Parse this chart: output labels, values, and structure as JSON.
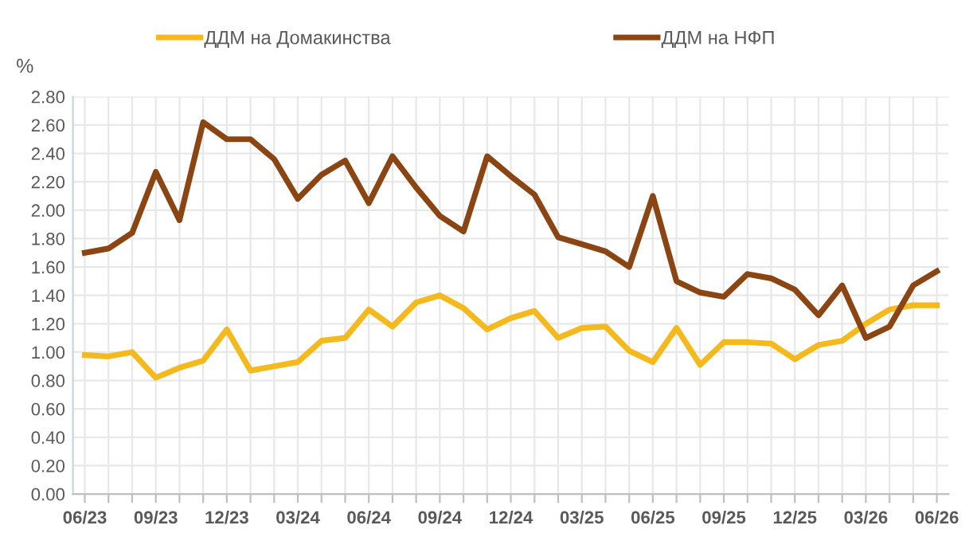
{
  "chart_data": {
    "type": "line",
    "ylabel": "%",
    "categories": [
      "06/23",
      null,
      null,
      "09/23",
      null,
      null,
      "12/23",
      null,
      null,
      "03/24",
      null,
      null,
      "06/24",
      null,
      null,
      "09/24",
      null,
      null,
      "12/24",
      null,
      null,
      "03/25",
      null,
      null,
      "06/25",
      null,
      null,
      "09/25",
      null,
      null,
      "12/25",
      null,
      null,
      "03/26",
      null,
      null,
      "06/26"
    ],
    "series": [
      {
        "name": "ДДМ на Домакинства",
        "color": "#f4b91c",
        "values": [
          0.98,
          0.97,
          1.0,
          0.82,
          0.89,
          0.94,
          1.16,
          0.87,
          0.9,
          0.93,
          1.08,
          1.1,
          1.3,
          1.18,
          1.35,
          1.4,
          1.31,
          1.16,
          1.24,
          1.29,
          1.1,
          1.17,
          1.18,
          1.01,
          0.93,
          1.17,
          0.91,
          1.07,
          1.07,
          1.06,
          0.95,
          1.05,
          1.08,
          1.2,
          1.3,
          1.33,
          1.33
        ]
      },
      {
        "name": "ДДМ на НФП",
        "color": "#8b4513",
        "values": [
          1.7,
          1.73,
          1.84,
          2.27,
          1.93,
          2.62,
          2.5,
          2.5,
          2.36,
          2.08,
          2.25,
          2.35,
          2.05,
          2.38,
          2.16,
          1.96,
          1.85,
          2.38,
          2.24,
          2.11,
          1.81,
          1.76,
          1.71,
          1.6,
          2.1,
          1.5,
          1.42,
          1.39,
          1.55,
          1.52,
          1.44,
          1.26,
          1.47,
          1.1,
          1.18,
          1.47,
          1.57
        ]
      }
    ],
    "ylim": [
      0,
      2.8
    ],
    "yticks": [
      {
        "value": 0,
        "label": "0.00"
      },
      {
        "value": 0.2,
        "label": "0.20"
      },
      {
        "value": 0.4,
        "label": "0.40"
      },
      {
        "value": 0.6,
        "label": "0.60"
      },
      {
        "value": 0.8,
        "label": "0.80"
      },
      {
        "value": 1.0,
        "label": "1.00"
      },
      {
        "value": 1.2,
        "label": "1.20"
      },
      {
        "value": 1.4,
        "label": "1.40"
      },
      {
        "value": 1.6,
        "label": "1.60"
      },
      {
        "value": 1.8,
        "label": "1.80"
      },
      {
        "value": 2.0,
        "label": "2.00"
      },
      {
        "value": 2.2,
        "label": "2.20"
      },
      {
        "value": 2.4,
        "label": "2.40"
      },
      {
        "value": 2.6,
        "label": "2.60"
      },
      {
        "value": 2.8,
        "label": "2.80"
      }
    ],
    "grid": true,
    "legend": "top",
    "line_style": "solid",
    "marker": "none"
  }
}
